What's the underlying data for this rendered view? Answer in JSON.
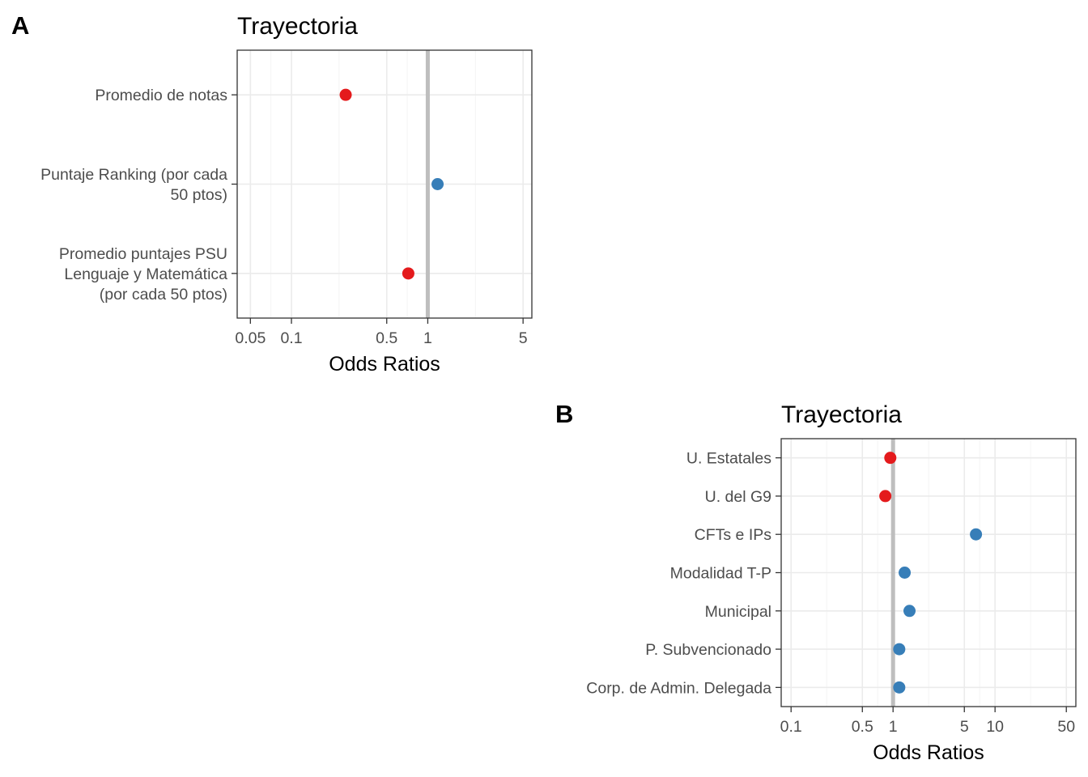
{
  "chart_data": [
    {
      "type": "scatter",
      "panel": "A",
      "title": "Trayectoria",
      "xlabel": "Odds Ratios",
      "xscale": "log",
      "xlim": [
        0.04,
        5.8
      ],
      "xticks": [
        0.05,
        0.1,
        0.5,
        1,
        5
      ],
      "xtick_labels": [
        "0.05",
        "0.1",
        "0.5",
        "1",
        "5"
      ],
      "reference_line": 1,
      "grid": true,
      "categories": [
        [
          "Promedio de notas"
        ],
        [
          "Puntaje Ranking (por cada",
          "50 ptos)"
        ],
        [
          "Promedio puntajes PSU",
          "Lenguaje y Matemática",
          "(por cada 50 ptos)"
        ]
      ],
      "values": [
        0.25,
        1.18,
        0.72
      ],
      "colors": [
        "#e41a1c",
        "#377eb8",
        "#e41a1c"
      ]
    },
    {
      "type": "scatter",
      "panel": "B",
      "title": "Trayectoria",
      "xlabel": "Odds Ratios",
      "xscale": "log",
      "xlim": [
        0.08,
        62
      ],
      "xticks": [
        0.1,
        0.5,
        1,
        5,
        10,
        50
      ],
      "xtick_labels": [
        "0.1",
        "0.5",
        "1",
        "5",
        "10",
        "50"
      ],
      "reference_line": 1,
      "grid": true,
      "categories": [
        [
          "U. Estatales"
        ],
        [
          "U. del G9"
        ],
        [
          "CFTs e IPs"
        ],
        [
          "Modalidad T-P"
        ],
        [
          "Municipal"
        ],
        [
          "P. Subvencionado"
        ],
        [
          "Corp. de Admin. Delegada"
        ]
      ],
      "values": [
        0.94,
        0.84,
        6.5,
        1.3,
        1.45,
        1.15,
        1.15
      ],
      "colors": [
        "#e41a1c",
        "#e41a1c",
        "#377eb8",
        "#377eb8",
        "#377eb8",
        "#377eb8",
        "#377eb8"
      ]
    }
  ]
}
